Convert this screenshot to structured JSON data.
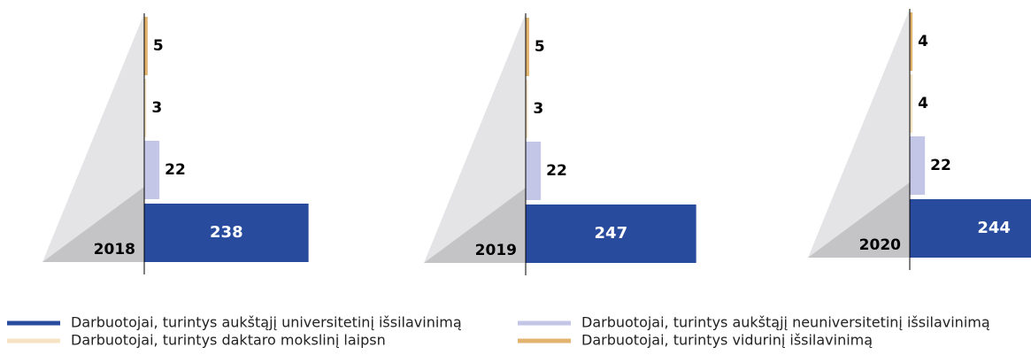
{
  "legend": [
    {
      "name": "Darbuotojai, turintys aukštąjį universitetinį išsilavinimą",
      "color": "#284b9e"
    },
    {
      "name": "Darbuotojai, turintys aukštąjį neuniversitetinį išsilavinimą",
      "color": "#c3c6e6"
    },
    {
      "name": "Darbuotojai, turintys daktaro mokslinį laipsn",
      "color": "#f5e3c3"
    },
    {
      "name": "Darbuotojai, turintys vidurinį išsilavinimą",
      "color": "#e3b470"
    }
  ],
  "chart_data": [
    {
      "type": "bar",
      "title": "2018",
      "values": [
        238,
        22,
        3,
        5
      ],
      "xlim": [
        0,
        300
      ]
    },
    {
      "type": "bar",
      "title": "2019",
      "values": [
        247,
        22,
        3,
        5
      ],
      "xlim": [
        0,
        300
      ]
    },
    {
      "type": "bar",
      "title": "2020",
      "values": [
        244,
        22,
        4,
        4
      ],
      "xlim": [
        0,
        300
      ]
    }
  ]
}
